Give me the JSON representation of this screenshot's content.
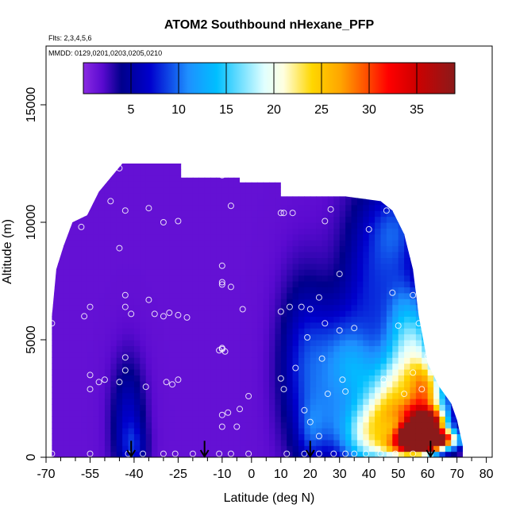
{
  "chart_data": {
    "type": "heatmap",
    "title": "ATOM2 Southbound nHexane_PFP",
    "subtitle_flights": "Flts: 2,3,4,5,6",
    "subtitle_dates": "MMDD: 0129,0201,0203,0205,0210",
    "xlabel": "Latitude (deg N)",
    "ylabel": "Altitude (m)",
    "xlim": [
      -70,
      82
    ],
    "ylim": [
      0,
      17500
    ],
    "x_ticks": [
      -70,
      -55,
      -40,
      -25,
      -10,
      0,
      10,
      20,
      30,
      40,
      50,
      60,
      70,
      80
    ],
    "x_tick_labels": [
      "-70",
      "-55",
      "-40",
      "-25",
      "-10",
      "0",
      "10",
      "20",
      "30",
      "40",
      "50",
      "60",
      "70",
      "80"
    ],
    "x_minor_ticks": [
      -65,
      -60,
      -50,
      -45,
      -35,
      -30,
      -20,
      -15,
      -5,
      5,
      15,
      25,
      35,
      45,
      55,
      65,
      75
    ],
    "y_ticks": [
      0,
      5000,
      10000,
      15000
    ],
    "y_tick_labels": [
      "0",
      "5000",
      "10000",
      "15000"
    ],
    "colorbar": {
      "range": [
        0,
        39
      ],
      "ticks": [
        5,
        10,
        15,
        20,
        25,
        30,
        35
      ],
      "tick_labels": [
        "5",
        "10",
        "15",
        "20",
        "25",
        "30",
        "35"
      ],
      "colors": [
        "#8a2be2",
        "#5a0ad0",
        "#00008b",
        "#0000cd",
        "#1e90ff",
        "#00bfff",
        "#e0ffff",
        "#ffffe0",
        "#ffd700",
        "#ffa500",
        "#ff4500",
        "#ff0000",
        "#cd0000",
        "#8b1a1a"
      ],
      "stops": [
        0,
        2,
        4,
        7,
        11,
        14,
        19,
        21,
        24,
        27,
        30,
        32,
        35,
        39
      ]
    },
    "envelope": [
      [
        -68,
        0
      ],
      [
        -68,
        6000
      ],
      [
        -66.5,
        8000
      ],
      [
        -64,
        9000
      ],
      [
        -61,
        10000
      ],
      [
        -56,
        10300
      ],
      [
        -52,
        11300
      ],
      [
        -46,
        12200
      ],
      [
        -44,
        12500
      ],
      [
        -24,
        12500
      ],
      [
        -24,
        11900
      ],
      [
        -4,
        11900
      ],
      [
        -4,
        11700
      ],
      [
        10,
        11700
      ],
      [
        10,
        11100
      ],
      [
        32,
        11100
      ],
      [
        44,
        10900
      ],
      [
        48,
        10500
      ],
      [
        52,
        9500
      ],
      [
        55,
        8000
      ],
      [
        57,
        6000
      ],
      [
        60,
        4000
      ],
      [
        64,
        3000
      ],
      [
        68,
        2300
      ],
      [
        70,
        1600
      ],
      [
        72,
        500
      ],
      [
        72,
        0
      ]
    ],
    "hotspots": [
      {
        "x": -42,
        "y": 1500,
        "sx": 4,
        "sy": 1800,
        "v": 5
      },
      {
        "x": -40,
        "y": 400,
        "sx": 3,
        "sy": 700,
        "v": 3
      },
      {
        "x": 18,
        "y": 3800,
        "sx": 6,
        "sy": 2600,
        "v": 6
      },
      {
        "x": 20,
        "y": 1000,
        "sx": 3,
        "sy": 900,
        "v": 3
      },
      {
        "x": 30,
        "y": 4200,
        "sx": 7,
        "sy": 1600,
        "v": 6
      },
      {
        "x": 42,
        "y": 7500,
        "sx": 8,
        "sy": 2800,
        "v": 6
      },
      {
        "x": 50,
        "y": 9800,
        "sx": 6,
        "sy": 1200,
        "v": 5
      },
      {
        "x": 26,
        "y": 1500,
        "sx": 5,
        "sy": 1200,
        "v": 4
      },
      {
        "x": 35,
        "y": 3700,
        "sx": 5,
        "sy": 1000,
        "v": 4
      },
      {
        "x": 38,
        "y": 900,
        "sx": 6,
        "sy": 1000,
        "v": 12
      },
      {
        "x": 45,
        "y": 1800,
        "sx": 6,
        "sy": 1400,
        "v": 13
      },
      {
        "x": 50,
        "y": 3000,
        "sx": 5,
        "sy": 1500,
        "v": 9
      },
      {
        "x": 52,
        "y": 5500,
        "sx": 4,
        "sy": 1500,
        "v": 7
      },
      {
        "x": 58,
        "y": 4400,
        "sx": 4,
        "sy": 1600,
        "v": 11
      },
      {
        "x": 60,
        "y": 2900,
        "sx": 5,
        "sy": 800,
        "v": 16
      },
      {
        "x": 58,
        "y": 1800,
        "sx": 6,
        "sy": 500,
        "v": 17
      },
      {
        "x": 60,
        "y": 1500,
        "sx": 4,
        "sy": 300,
        "v": 24
      },
      {
        "x": 55,
        "y": 500,
        "sx": 6,
        "sy": 400,
        "v": 27
      },
      {
        "x": 58,
        "y": 800,
        "sx": 4,
        "sy": 300,
        "v": 32
      },
      {
        "x": 64,
        "y": 800,
        "sx": 5,
        "sy": 300,
        "v": 28
      },
      {
        "x": 55,
        "y": 1100,
        "sx": 3,
        "sy": 250,
        "v": 26
      }
    ],
    "samples": [
      [
        -45,
        12300
      ],
      [
        -48,
        10900
      ],
      [
        -43,
        10500
      ],
      [
        -35,
        10600
      ],
      [
        -30,
        10000
      ],
      [
        -25,
        10050
      ],
      [
        -10,
        12000
      ],
      [
        -7,
        10700
      ],
      [
        10,
        10400
      ],
      [
        11,
        10400
      ],
      [
        14,
        10400
      ],
      [
        25,
        10050
      ],
      [
        27,
        10550
      ],
      [
        40,
        9700
      ],
      [
        46,
        10500
      ],
      [
        50,
        10350
      ],
      [
        -58,
        9800
      ],
      [
        -45,
        8900
      ],
      [
        -10,
        8150
      ],
      [
        -10,
        7450
      ],
      [
        -10,
        7350
      ],
      [
        -7,
        7250
      ],
      [
        30,
        7800
      ],
      [
        48,
        7000
      ],
      [
        55,
        6900
      ],
      [
        -68,
        5700
      ],
      [
        -57,
        6000
      ],
      [
        -55,
        6400
      ],
      [
        -43,
        6900
      ],
      [
        -43,
        6400
      ],
      [
        -41,
        6100
      ],
      [
        -35,
        6700
      ],
      [
        -33,
        6100
      ],
      [
        -30,
        6000
      ],
      [
        -28,
        6150
      ],
      [
        -25,
        6050
      ],
      [
        -22,
        5950
      ],
      [
        -3,
        6300
      ],
      [
        10,
        6200
      ],
      [
        13,
        6400
      ],
      [
        17,
        6400
      ],
      [
        23,
        6800
      ],
      [
        20,
        6300
      ],
      [
        25,
        5700
      ],
      [
        30,
        5400
      ],
      [
        35,
        5500
      ],
      [
        50,
        5600
      ],
      [
        57,
        5700
      ],
      [
        -10,
        4600
      ],
      [
        -10,
        4650
      ],
      [
        -9,
        4500
      ],
      [
        -11,
        4550
      ],
      [
        19,
        5100
      ],
      [
        24,
        4200
      ],
      [
        60,
        4300
      ],
      [
        -43,
        4250
      ],
      [
        -43,
        3700
      ],
      [
        -55,
        3500
      ],
      [
        -52,
        3200
      ],
      [
        -55,
        2900
      ],
      [
        -50,
        3300
      ],
      [
        -45,
        3200
      ],
      [
        -36,
        3000
      ],
      [
        -29,
        3200
      ],
      [
        -27,
        3100
      ],
      [
        -25,
        3300
      ],
      [
        -4,
        2050
      ],
      [
        -1,
        2600
      ],
      [
        10,
        3350
      ],
      [
        11,
        2900
      ],
      [
        15,
        3800
      ],
      [
        26,
        2700
      ],
      [
        31,
        3300
      ],
      [
        32,
        2800
      ],
      [
        45,
        3300
      ],
      [
        55,
        3600
      ],
      [
        58,
        2900
      ],
      [
        52,
        2700
      ],
      [
        18,
        2000
      ],
      [
        20,
        1500
      ],
      [
        23,
        900
      ],
      [
        -10,
        1800
      ],
      [
        -10,
        1300
      ],
      [
        -8,
        1900
      ],
      [
        -5,
        1300
      ],
      [
        -68,
        150
      ],
      [
        -55,
        150
      ],
      [
        -42,
        150
      ],
      [
        -37,
        150
      ],
      [
        -30,
        150
      ],
      [
        -26,
        150
      ],
      [
        -20,
        150
      ],
      [
        -11,
        150
      ],
      [
        -7,
        150
      ],
      [
        -1,
        150
      ],
      [
        12,
        150
      ],
      [
        18,
        150
      ],
      [
        23,
        150
      ],
      [
        28,
        150
      ],
      [
        32,
        150
      ],
      [
        35,
        150
      ],
      [
        39,
        150
      ],
      [
        44,
        150
      ],
      [
        49,
        150
      ],
      [
        55,
        150
      ]
    ],
    "arrows": [
      -41,
      -16,
      20,
      61
    ]
  }
}
